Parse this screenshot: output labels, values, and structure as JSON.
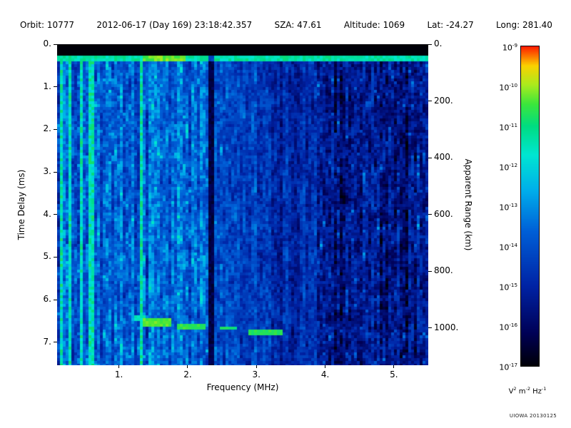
{
  "header": {
    "orbit": "Orbit: 10777",
    "datetime": "2012-06-17 (Day 169) 23:18:42.357",
    "sza": "SZA: 47.61",
    "altitude": "Altitude: 1069",
    "lat": "Lat: -24.27",
    "long": "Long: 281.40"
  },
  "footer": {
    "credit": "UIOWA 20130125"
  },
  "chart_data": {
    "type": "heatmap",
    "xlabel": "Frequency (MHz)",
    "ylabel_left": "Time Delay (ms)",
    "ylabel_right": "Apparent Range (km)",
    "x_range_mhz": [
      0.1,
      5.5
    ],
    "x_ticks": [
      1,
      2,
      3,
      4,
      5
    ],
    "x_tick_labels": [
      "1.",
      "2.",
      "3.",
      "4.",
      "5."
    ],
    "y_range_ms": [
      0,
      7.54
    ],
    "y_ticks_ms": [
      0,
      1,
      2,
      3,
      4,
      5,
      6,
      7
    ],
    "y_tick_labels_ms": [
      "0.",
      "1.",
      "2.",
      "3.",
      "4.",
      "5.",
      "6.",
      "7."
    ],
    "y_right_range_km": [
      0,
      1131
    ],
    "y_right_ticks_km": [
      0,
      200,
      400,
      600,
      800,
      1000
    ],
    "y_right_tick_labels": [
      "0.",
      "200.",
      "400.",
      "600.",
      "800.",
      "1000."
    ],
    "colorbar": {
      "scale": "log",
      "tick_labels_base": "10",
      "tick_exponents": [
        "-9",
        "-10",
        "-11",
        "-12",
        "-13",
        "-14",
        "-15",
        "-16",
        "-17"
      ],
      "units_parts": [
        {
          "base": "V",
          "exp": "2"
        },
        {
          "base": "m",
          "exp": "-2"
        },
        {
          "base": "Hz",
          "exp": "-1"
        }
      ],
      "top_color": "#ff1e00",
      "bottom_color": "#000008"
    },
    "features": {
      "black_band_ms": [
        0,
        0.26
      ],
      "transmit_pulse": {
        "t_ms": 0.33,
        "thickness_ms": 0.14,
        "bright_mhz": [
          1.35,
          1.95
        ]
      },
      "plasma_harmonic_lines_mhz": [
        0.15,
        0.3,
        0.45,
        0.6
      ],
      "vertical_line_mhz": 1.32,
      "dark_band_mhz": {
        "center": 2.33,
        "width": 0.09
      },
      "echo_trace_segments": [
        {
          "f0": 1.22,
          "f1": 1.38,
          "t_ms": 6.45,
          "thickness_ms": 0.12,
          "level": 0.68
        },
        {
          "f0": 1.33,
          "f1": 1.75,
          "t_ms": 6.55,
          "thickness_ms": 0.2,
          "level": 0.83
        },
        {
          "f0": 1.85,
          "f1": 2.25,
          "t_ms": 6.63,
          "thickness_ms": 0.11,
          "level": 0.8
        },
        {
          "f0": 2.45,
          "f1": 2.72,
          "t_ms": 6.68,
          "thickness_ms": 0.1,
          "level": 0.76
        },
        {
          "f0": 2.9,
          "f1": 3.4,
          "t_ms": 6.76,
          "thickness_ms": 0.12,
          "level": 0.8
        }
      ],
      "noise_bands": [
        {
          "f0": 0.1,
          "f1": 0.65,
          "base": 0.42,
          "col_var": 0.16,
          "noise": 0.2
        },
        {
          "f0": 0.65,
          "f1": 2.3,
          "base": 0.4,
          "col_var": 0.08,
          "noise": 0.18
        },
        {
          "f0": 2.3,
          "f1": 3.0,
          "base": 0.33,
          "col_var": 0.06,
          "noise": 0.17
        },
        {
          "f0": 3.0,
          "f1": 3.9,
          "base": 0.27,
          "col_var": 0.06,
          "noise": 0.17
        },
        {
          "f0": 3.9,
          "f1": 5.51,
          "base": 0.17,
          "col_var": 0.07,
          "noise": 0.19
        }
      ]
    }
  }
}
